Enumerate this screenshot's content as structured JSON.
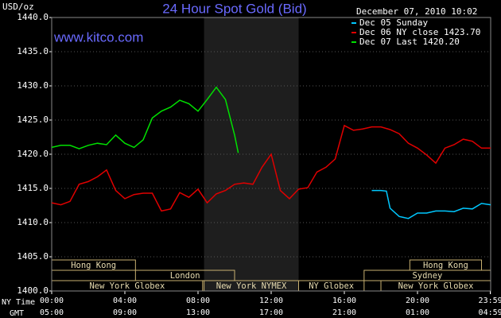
{
  "chart_data": {
    "type": "line",
    "title": "24 Hour Spot Gold (Bid)",
    "subtitle": "www.kitco.com",
    "ylabel": "USD/oz",
    "timestamp": "December 07, 2010 10:02",
    "xlabel": "NY Time",
    "x2label": "GMT",
    "xlim": [
      0,
      24
    ],
    "ylim": [
      1400,
      1440
    ],
    "yticks": [
      {
        "value": 1400,
        "label": "1400.0"
      },
      {
        "value": 1405,
        "label": "1405.0"
      },
      {
        "value": 1410,
        "label": "1410.0"
      },
      {
        "value": 1415,
        "label": "1415.0"
      },
      {
        "value": 1420,
        "label": "1420.0"
      },
      {
        "value": 1425,
        "label": "1425.0"
      },
      {
        "value": 1430,
        "label": "1430.0"
      },
      {
        "value": 1435,
        "label": "1435.0"
      },
      {
        "value": 1440,
        "label": "1440.0"
      }
    ],
    "xticks": [
      {
        "value": 0,
        "label": "00:00"
      },
      {
        "value": 4,
        "label": "04:00"
      },
      {
        "value": 8,
        "label": "08:00"
      },
      {
        "value": 12,
        "label": "12:00"
      },
      {
        "value": 16,
        "label": "16:00"
      },
      {
        "value": 20,
        "label": "20:00"
      },
      {
        "value": 23.983,
        "label": "23:59"
      }
    ],
    "x2ticks": [
      {
        "value": 0,
        "label": "05:00"
      },
      {
        "value": 4,
        "label": "09:00"
      },
      {
        "value": 8,
        "label": "13:00"
      },
      {
        "value": 12,
        "label": "17:00"
      },
      {
        "value": 16,
        "label": "21:00"
      },
      {
        "value": 20,
        "label": "01:00"
      },
      {
        "value": 23.983,
        "label": "04:59"
      }
    ],
    "grid": true,
    "shade": [
      8.33,
      13.5
    ],
    "sessions": [
      [
        {
          "name": "Hong Kong",
          "start": 0,
          "end": 4.58
        },
        {
          "name": "Hong Kong",
          "start": 19.58,
          "end": 23.5
        }
      ],
      [
        {
          "name": "London",
          "start": 4.58,
          "end": 10
        },
        {
          "name": "Sydney",
          "start": 17.08,
          "end": 24
        }
      ],
      [
        {
          "name": "New York Globex",
          "start": 0,
          "end": 8.25
        },
        {
          "name": "New York NYMEX",
          "start": 8.33,
          "end": 13.5
        },
        {
          "name": "NY Globex",
          "start": 13.5,
          "end": 17.08
        },
        {
          "name": "New York Globex",
          "start": 18,
          "end": 24
        }
      ]
    ],
    "series": [
      {
        "name": "Dec 05 Sunday",
        "color": "#00c8ff",
        "x": [
          17.5,
          18,
          18.3,
          18.5,
          19,
          19.5,
          20,
          20.5,
          21,
          21.5,
          22,
          22.5,
          23,
          23.5,
          24
        ],
        "values": [
          1414.7,
          1414.7,
          1414.6,
          1412.1,
          1410.9,
          1410.6,
          1411.4,
          1411.4,
          1411.7,
          1411.7,
          1411.6,
          1412.1,
          1412.0,
          1412.8,
          1412.6
        ]
      },
      {
        "name": "Dec 06 NY close 1423.70",
        "color": "#e00000",
        "x": [
          0,
          0.5,
          1,
          1.5,
          2,
          2.5,
          3,
          3.5,
          4,
          4.5,
          5,
          5.5,
          6,
          6.5,
          7,
          7.5,
          8,
          8.5,
          9,
          9.5,
          10,
          10.5,
          11,
          11.5,
          12,
          12.5,
          13,
          13.5,
          14,
          14.5,
          15,
          15.5,
          16,
          16.5,
          17,
          17.5,
          18,
          18.5,
          19,
          19.5,
          20,
          20.5,
          21,
          21.5,
          22,
          22.5,
          23,
          23.5,
          24
        ],
        "values": [
          1412.9,
          1412.6,
          1413.1,
          1415.6,
          1416.0,
          1416.7,
          1417.7,
          1414.7,
          1413.5,
          1414.1,
          1414.3,
          1414.3,
          1411.7,
          1412.0,
          1414.4,
          1413.7,
          1414.9,
          1412.9,
          1414.2,
          1414.7,
          1415.6,
          1415.8,
          1415.6,
          1418.1,
          1420.0,
          1414.7,
          1413.5,
          1414.9,
          1415.1,
          1417.4,
          1418.1,
          1419.3,
          1424.2,
          1423.5,
          1423.7,
          1424.0,
          1424.0,
          1423.6,
          1423.0,
          1421.6,
          1420.9,
          1419.9,
          1418.7,
          1420.9,
          1421.4,
          1422.2,
          1421.9,
          1420.9,
          1420.9
        ]
      },
      {
        "name": "Dec 07 Last 1420.20",
        "color": "#00e000",
        "x": [
          0,
          0.5,
          1,
          1.5,
          2,
          2.5,
          3,
          3.5,
          4,
          4.5,
          5,
          5.5,
          6,
          6.5,
          7,
          7.5,
          8,
          8.5,
          9,
          9.5,
          10,
          10.2
        ],
        "values": [
          1421.0,
          1421.3,
          1421.3,
          1420.8,
          1421.3,
          1421.6,
          1421.4,
          1422.8,
          1421.6,
          1421.0,
          1422.1,
          1425.3,
          1426.3,
          1426.9,
          1427.9,
          1427.4,
          1426.3,
          1428.0,
          1429.8,
          1428.0,
          1422.8,
          1420.2
        ]
      }
    ]
  }
}
